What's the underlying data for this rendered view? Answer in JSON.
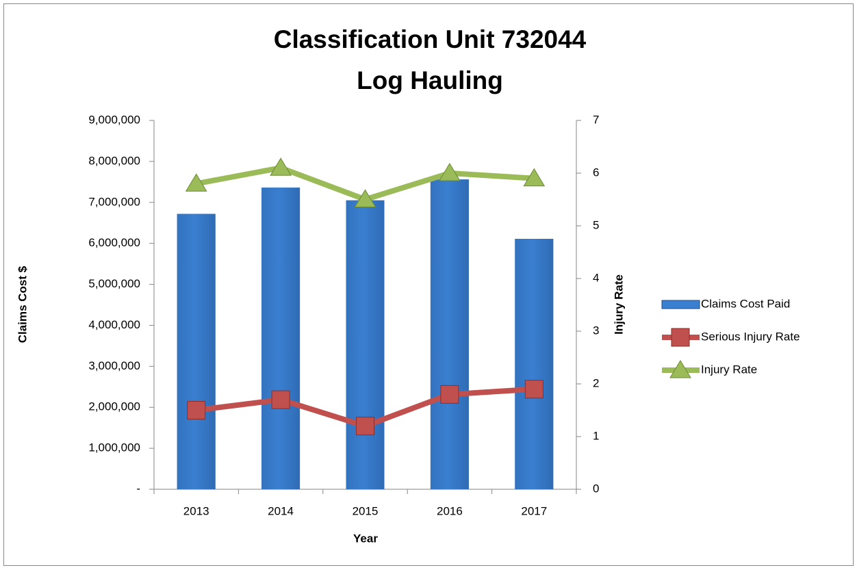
{
  "chart_data": {
    "type": "bar",
    "title": "Classification Unit 732044",
    "subtitle": "Log Hauling",
    "x_label": "Year",
    "y_label": "Claims Cost $",
    "y2_label": "Injury Rate",
    "categories": [
      "2013",
      "2014",
      "2015",
      "2016",
      "2017"
    ],
    "series": [
      {
        "name": "Claims Cost Paid",
        "type": "bar",
        "color": "#3a7fd0",
        "axis": "y",
        "values": [
          6720000,
          7360000,
          7050000,
          7560000,
          6110000
        ]
      },
      {
        "name": "Serious Injury Rate",
        "type": "line",
        "marker": "square",
        "color": "#c0504d",
        "axis": "y2",
        "values": [
          1.5,
          1.7,
          1.2,
          1.8,
          1.9
        ]
      },
      {
        "name": "Injury Rate",
        "type": "line",
        "marker": "triangle",
        "color": "#9bbb59",
        "axis": "y2",
        "values": [
          5.8,
          6.1,
          5.5,
          6.0,
          5.9
        ]
      }
    ],
    "ylim": [
      0,
      9000000
    ],
    "yticks": [
      {
        "value": 0,
        "label": "-"
      },
      {
        "value": 1000000,
        "label": "1,000,000"
      },
      {
        "value": 2000000,
        "label": "2,000,000"
      },
      {
        "value": 3000000,
        "label": "3,000,000"
      },
      {
        "value": 4000000,
        "label": "4,000,000"
      },
      {
        "value": 5000000,
        "label": "5,000,000"
      },
      {
        "value": 6000000,
        "label": "6,000,000"
      },
      {
        "value": 7000000,
        "label": "7,000,000"
      },
      {
        "value": 8000000,
        "label": "8,000,000"
      },
      {
        "value": 9000000,
        "label": "9,000,000"
      }
    ],
    "y2lim": [
      0,
      7
    ],
    "y2ticks": [
      0,
      1,
      2,
      3,
      4,
      5,
      6,
      7
    ],
    "grid": false,
    "legend": "right"
  }
}
